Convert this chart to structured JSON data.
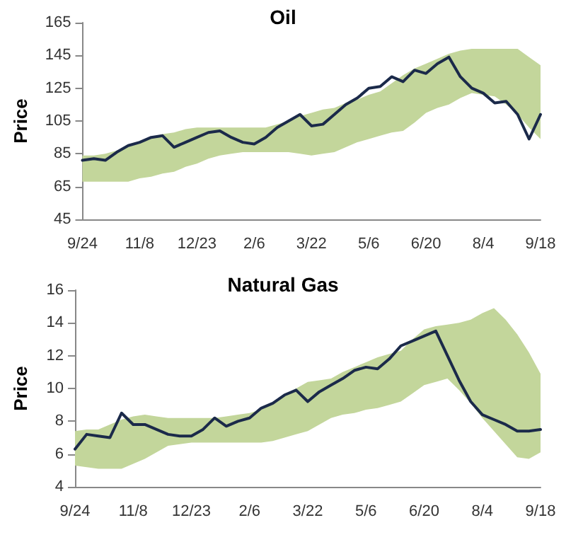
{
  "chart_data": [
    {
      "type": "line",
      "title": "Oil",
      "ylabel": "Price",
      "categories": [
        "9/24",
        null,
        null,
        null,
        null,
        "11/8",
        null,
        null,
        null,
        null,
        "12/23",
        null,
        null,
        null,
        null,
        "2/6",
        null,
        null,
        null,
        null,
        "3/22",
        null,
        null,
        null,
        null,
        "5/6",
        null,
        null,
        null,
        null,
        "6/20",
        null,
        null,
        null,
        null,
        "8/4",
        null,
        null,
        null,
        null,
        "9/18"
      ],
      "series": [
        {
          "color": "#1b2a4a",
          "values": [
            81,
            82,
            81,
            86,
            90,
            92,
            95,
            96,
            89,
            92,
            95,
            98,
            99,
            95,
            92,
            91,
            95,
            101,
            105,
            109,
            102,
            103,
            109,
            115,
            119,
            125,
            126,
            132,
            129,
            136,
            134,
            140,
            144,
            132,
            125,
            122,
            116,
            117,
            109,
            94,
            109
          ],
          "lower": [
            68,
            68,
            68,
            68,
            68,
            70,
            71,
            73,
            74,
            77,
            79,
            82,
            84,
            85,
            86,
            86,
            86,
            86,
            86,
            85,
            84,
            85,
            86,
            89,
            92,
            94,
            96,
            98,
            99,
            104,
            110,
            113,
            115,
            119,
            122,
            121,
            120,
            115,
            109,
            101,
            94
          ],
          "upper": [
            84,
            84,
            85,
            87,
            89,
            92,
            95,
            97,
            98,
            100,
            101,
            101,
            101,
            101,
            101,
            101,
            101,
            103,
            105,
            108,
            110,
            112,
            113,
            116,
            118,
            121,
            123,
            128,
            133,
            137,
            140,
            143,
            146,
            148,
            149,
            149,
            149,
            149,
            149,
            144,
            139
          ]
        }
      ],
      "ylim": [
        45,
        165
      ],
      "yticks": [
        45,
        65,
        85,
        105,
        125,
        145,
        165
      ],
      "grid": false,
      "marker": "none",
      "line_style": "solid"
    },
    {
      "type": "line",
      "title": "Natural Gas",
      "ylabel": "Price",
      "categories": [
        "9/24",
        null,
        null,
        null,
        null,
        "11/8",
        null,
        null,
        null,
        null,
        "12/23",
        null,
        null,
        null,
        null,
        "2/6",
        null,
        null,
        null,
        null,
        "3/22",
        null,
        null,
        null,
        null,
        "5/6",
        null,
        null,
        null,
        null,
        "6/20",
        null,
        null,
        null,
        null,
        "8/4",
        null,
        null,
        null,
        null,
        "9/18"
      ],
      "series": [
        {
          "color": "#1b2a4a",
          "values": [
            6.3,
            7.2,
            7.1,
            7.0,
            8.5,
            7.8,
            7.8,
            7.5,
            7.2,
            7.1,
            7.1,
            7.5,
            8.2,
            7.7,
            8.0,
            8.2,
            8.8,
            9.1,
            9.6,
            9.9,
            9.2,
            9.8,
            10.2,
            10.6,
            11.1,
            11.3,
            11.2,
            11.8,
            12.6,
            12.9,
            13.2,
            13.5,
            12.0,
            10.5,
            9.2,
            8.4,
            8.1,
            7.8,
            7.4,
            7.4,
            7.5
          ],
          "lower": [
            5.3,
            5.2,
            5.1,
            5.1,
            5.1,
            5.4,
            5.7,
            6.1,
            6.5,
            6.6,
            6.7,
            6.7,
            6.7,
            6.7,
            6.7,
            6.7,
            6.7,
            6.8,
            7.0,
            7.2,
            7.4,
            7.8,
            8.2,
            8.4,
            8.5,
            8.7,
            8.8,
            9.0,
            9.2,
            9.7,
            10.2,
            10.4,
            10.6,
            9.9,
            9.1,
            8.2,
            7.4,
            6.6,
            5.8,
            5.7,
            6.1
          ],
          "upper": [
            7.4,
            7.5,
            7.5,
            7.8,
            8.1,
            8.3,
            8.4,
            8.3,
            8.2,
            8.2,
            8.2,
            8.2,
            8.2,
            8.3,
            8.4,
            8.5,
            8.7,
            9.1,
            9.6,
            10.0,
            10.4,
            10.5,
            10.6,
            11.0,
            11.3,
            11.6,
            11.9,
            12.1,
            12.3,
            13.0,
            13.6,
            13.8,
            13.9,
            14.0,
            14.2,
            14.6,
            14.9,
            14.2,
            13.3,
            12.2,
            10.9
          ]
        }
      ],
      "ylim": [
        4,
        16
      ],
      "yticks": [
        4,
        6,
        8,
        10,
        12,
        14,
        16
      ],
      "grid": false,
      "marker": "none",
      "line_style": "solid"
    }
  ]
}
